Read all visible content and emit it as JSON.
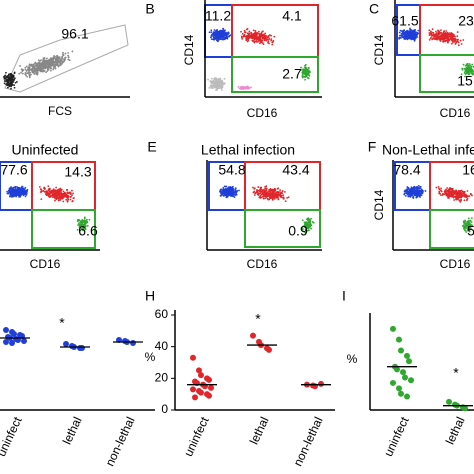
{
  "flow_panels": [
    {
      "numbers": [
        96.1
      ],
      "x_label": "FCS"
    },
    {
      "letter": "B",
      "x_label": "CD16",
      "y_label": "CD14",
      "gates": [
        11.2,
        4.1,
        2.7
      ]
    },
    {
      "letter": "C",
      "x_label": "CD16",
      "y_label": "CD14",
      "gates": [
        61.5,
        23,
        15
      ]
    },
    {
      "title": "Uninfected",
      "x_label": "CD16",
      "gates": [
        77.6,
        14.3,
        6.6
      ]
    },
    {
      "letter": "E",
      "title": "Lethal infection",
      "x_label": "CD16",
      "gates": [
        54.8,
        43.4,
        0.9
      ]
    },
    {
      "letter": "F",
      "title": "Non-Lethal infection",
      "x_label": "CD16",
      "y_label": "CD14",
      "gates": [
        78.4,
        16,
        5
      ]
    }
  ],
  "dot_plots": [
    {
      "color": "#1f3fd8",
      "ylim": [
        0,
        100
      ],
      "asterisk": "*",
      "groups": [
        {
          "name": "uninfect",
          "values": [
            80,
            78,
            76,
            75,
            74,
            73,
            72,
            71,
            70,
            69,
            68,
            67
          ],
          "mean": 72
        },
        {
          "name": "lethal",
          "values": [
            66,
            64,
            63,
            62,
            62
          ],
          "mean": 63
        },
        {
          "name": "non-lethal",
          "values": [
            70,
            69,
            68,
            67
          ],
          "mean": 68
        }
      ]
    },
    {
      "letter": "H",
      "color": "#e0262b",
      "y_label": "%",
      "ylim": [
        0,
        60
      ],
      "yticks": [
        0,
        20,
        40,
        60
      ],
      "asterisk": "*",
      "groups": [
        {
          "name": "uninfect",
          "values": [
            33,
            25,
            22,
            20,
            19,
            18,
            17,
            16,
            15,
            14,
            13,
            12,
            11,
            10,
            9,
            8
          ],
          "mean": 16
        },
        {
          "name": "lethal",
          "values": [
            47,
            43,
            41,
            39,
            38
          ],
          "mean": 41
        },
        {
          "name": "non-lethal",
          "values": [
            16,
            15.5,
            15,
            16.5
          ],
          "mean": 16
        }
      ]
    },
    {
      "letter": "I",
      "color": "#2ea82e",
      "y_label": "%",
      "ylim": [
        0,
        17
      ],
      "asterisk": "*",
      "groups": [
        {
          "name": "uninfect",
          "values": [
            15,
            13,
            11,
            10,
            9,
            8,
            7.5,
            7,
            6,
            5.5,
            5,
            4,
            3,
            2.5
          ],
          "mean": 8
        },
        {
          "name": "lethal",
          "values": [
            1.5,
            1,
            0.8,
            0.5,
            0.3
          ],
          "mean": 0.8
        }
      ]
    }
  ]
}
